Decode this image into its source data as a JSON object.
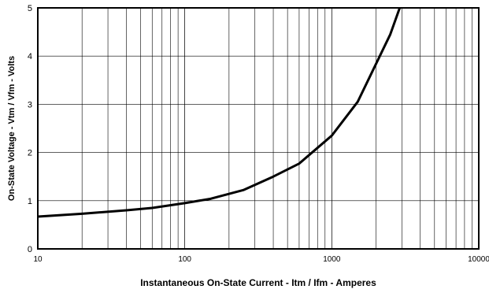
{
  "chart_data": {
    "type": "line",
    "title": "",
    "xlabel": "Instantaneous On-State Current  -  Itm / Ifm  -  Amperes",
    "ylabel": "On-State Voltage  -  Vtm / Vfm  -  Volts",
    "x_scale": "log",
    "xlim": [
      10,
      10000
    ],
    "ylim": [
      0,
      5
    ],
    "x_ticks": [
      "10",
      "100",
      "1000",
      "10000"
    ],
    "y_ticks": [
      "0",
      "1",
      "2",
      "3",
      "4",
      "5"
    ],
    "grid": true,
    "legend": "none",
    "line_color": "#000000",
    "series": [
      {
        "x": [
          10,
          20,
          40,
          60,
          100,
          150,
          250,
          400,
          600,
          1000,
          1500,
          2500,
          2900
        ],
        "y": [
          0.67,
          0.73,
          0.8,
          0.85,
          0.95,
          1.04,
          1.22,
          1.5,
          1.77,
          2.35,
          3.05,
          4.45,
          5.0
        ]
      }
    ]
  }
}
